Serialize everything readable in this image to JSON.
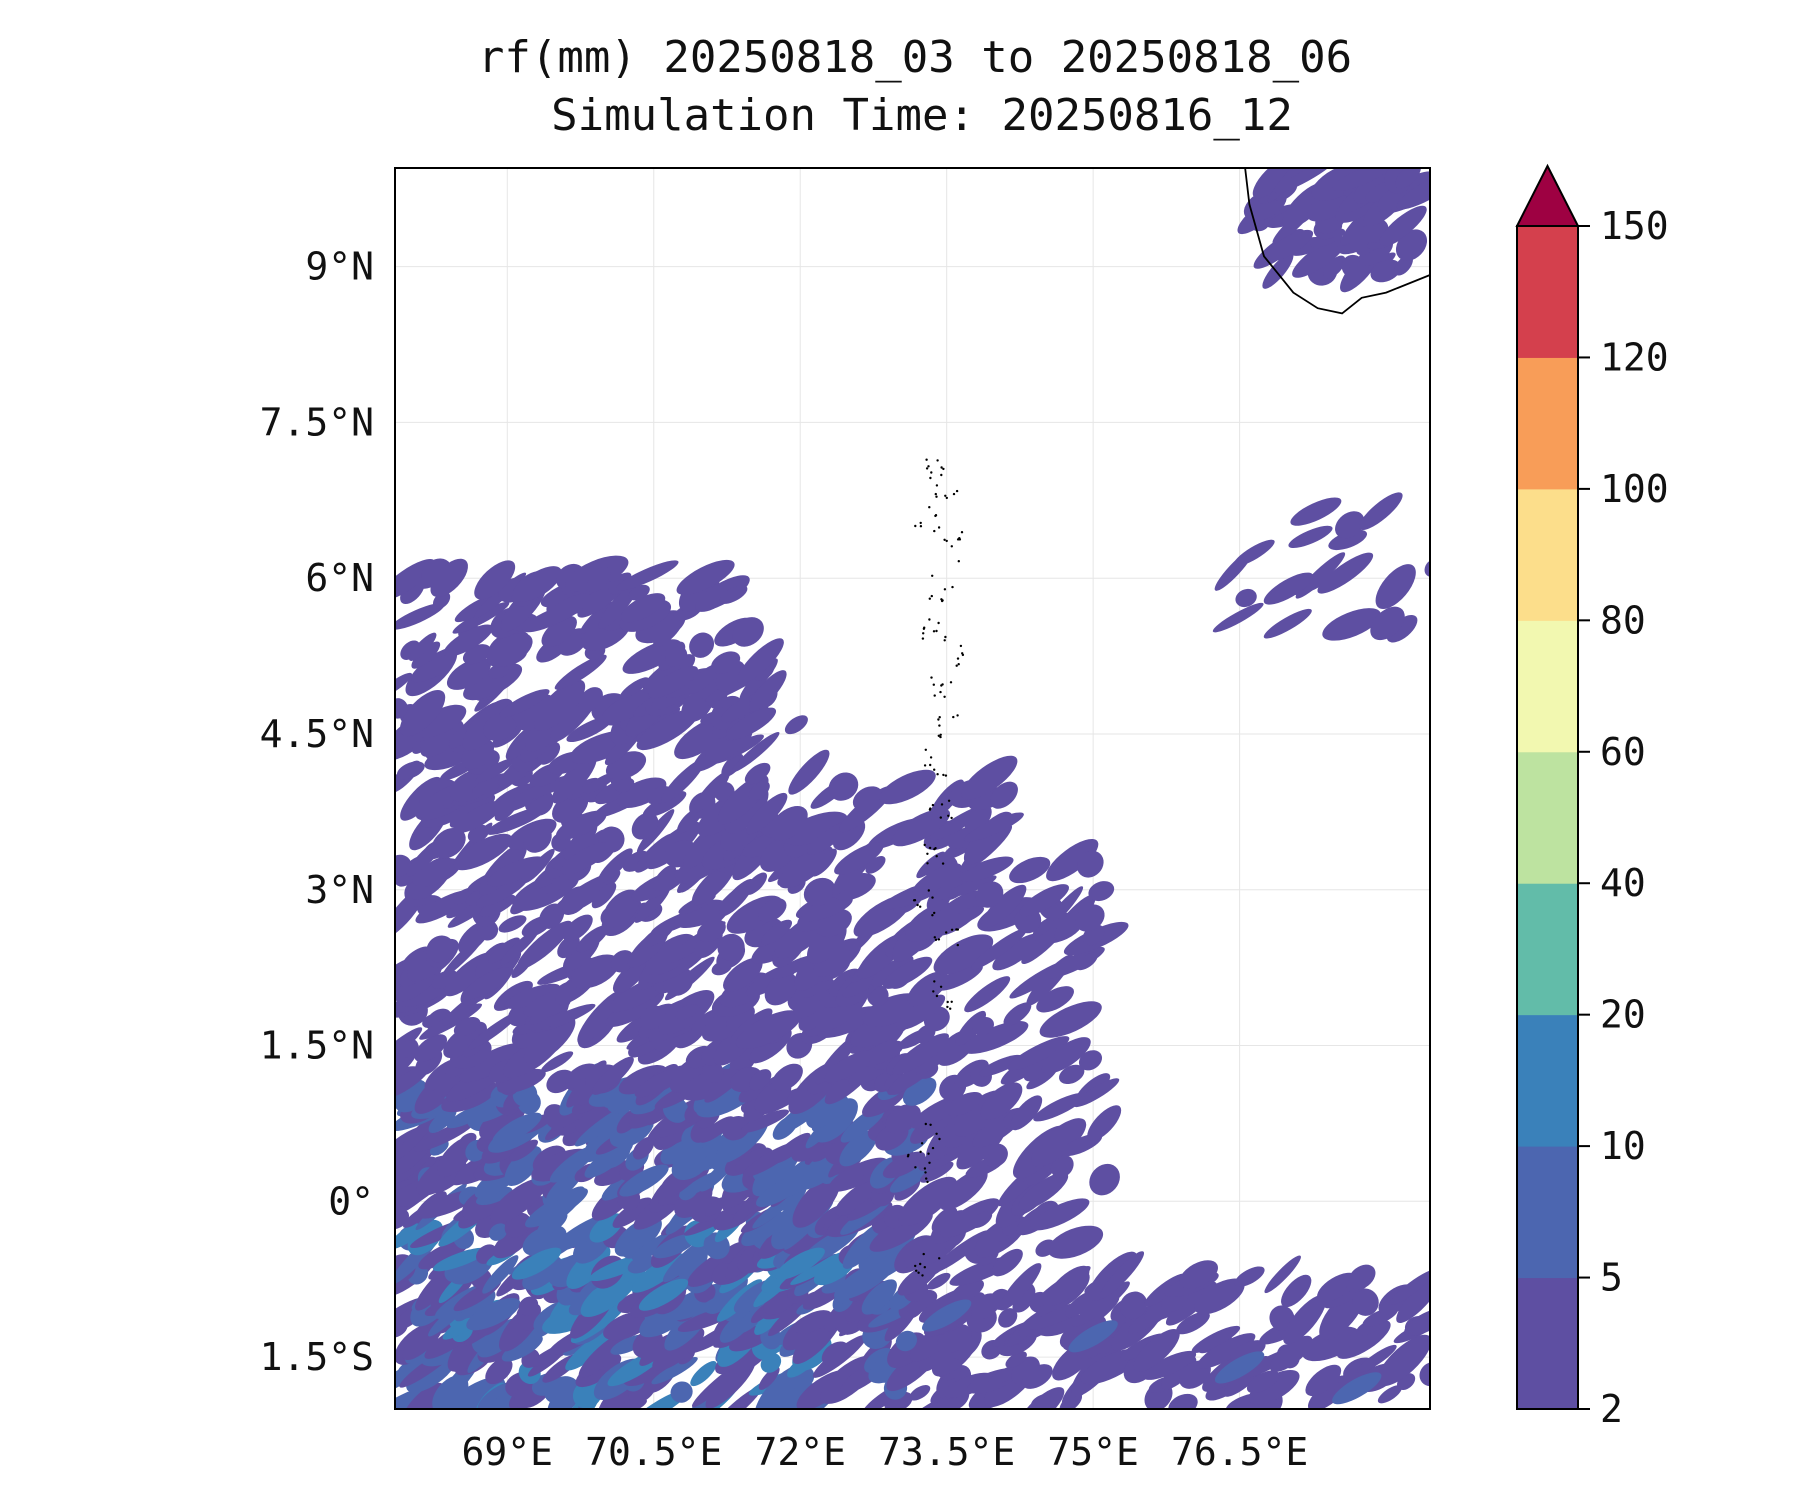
{
  "figure": {
    "title_line1": "rf(mm) 20250818_03 to 20250818_06",
    "title_line2": "Simulation Time: 20250816_12"
  },
  "map": {
    "lon_range": [
      67.85,
      78.45
    ],
    "lat_range": [
      -2.0,
      9.95
    ],
    "x_ticks": [
      {
        "value": 69.0,
        "label": "69°E"
      },
      {
        "value": 70.5,
        "label": "70.5°E"
      },
      {
        "value": 72.0,
        "label": "72°E"
      },
      {
        "value": 73.5,
        "label": "73.5°E"
      },
      {
        "value": 75.0,
        "label": "75°E"
      },
      {
        "value": 76.5,
        "label": "76.5°E"
      }
    ],
    "y_ticks": [
      {
        "value": 9.0,
        "label": "9°N"
      },
      {
        "value": 7.5,
        "label": "7.5°N"
      },
      {
        "value": 6.0,
        "label": "6°N"
      },
      {
        "value": 4.5,
        "label": "4.5°N"
      },
      {
        "value": 3.0,
        "label": "3°N"
      },
      {
        "value": 1.5,
        "label": "1.5°N"
      },
      {
        "value": 0.0,
        "label": "0°"
      },
      {
        "value": -1.5,
        "label": "1.5°S"
      }
    ],
    "gridlines": true,
    "coastline": [
      [
        76.55,
        10.0
      ],
      [
        76.6,
        9.6
      ],
      [
        76.75,
        9.1
      ],
      [
        77.05,
        8.75
      ],
      [
        77.3,
        8.6
      ],
      [
        77.55,
        8.55
      ],
      [
        77.75,
        8.7
      ],
      [
        78.0,
        8.75
      ],
      [
        78.45,
        8.92
      ]
    ],
    "rain_field": {
      "description_label": "rf(mm)",
      "dominant_range_mm": "2-10",
      "rain_cells": [
        {
          "lon": 68.6,
          "lat": 5.4,
          "level": 0
        },
        {
          "lon": 69.6,
          "lat": 5.7,
          "level": 0
        },
        {
          "lon": 70.7,
          "lat": 5.0,
          "level": 0
        },
        {
          "lon": 71.5,
          "lat": 4.6,
          "level": 0
        },
        {
          "lon": 68.7,
          "lat": 3.7,
          "level": 0
        },
        {
          "lon": 69.8,
          "lat": 3.3,
          "level": 0
        },
        {
          "lon": 72.6,
          "lat": 3.3,
          "level": 0
        },
        {
          "lon": 73.4,
          "lat": 3.1,
          "level": 0
        },
        {
          "lon": 74.5,
          "lat": 2.9,
          "level": 0
        },
        {
          "lon": 68.8,
          "lat": 2.1,
          "level": 0
        },
        {
          "lon": 73.1,
          "lat": 2.2,
          "level": 0
        },
        {
          "lon": 72.5,
          "lat": 1.3,
          "level": 0
        },
        {
          "lon": 69.1,
          "lat": 0.7,
          "level": 1
        },
        {
          "lon": 70.4,
          "lat": 0.2,
          "level": 1
        },
        {
          "lon": 71.8,
          "lat": 0.1,
          "level": 1
        },
        {
          "lon": 69.3,
          "lat": -0.6,
          "level": 2
        },
        {
          "lon": 70.6,
          "lat": -0.9,
          "level": 2
        },
        {
          "lon": 72.0,
          "lat": -0.6,
          "level": 2
        },
        {
          "lon": 73.5,
          "lat": -1.1,
          "level": 1
        },
        {
          "lon": 75.0,
          "lat": -1.3,
          "level": 1
        },
        {
          "lon": 76.5,
          "lat": -1.6,
          "level": 1
        },
        {
          "lon": 77.7,
          "lat": -1.8,
          "level": 1
        },
        {
          "lon": 77.0,
          "lat": 5.9,
          "level": 0
        },
        {
          "lon": 77.0,
          "lat": 9.2,
          "level": 0
        }
      ]
    }
  },
  "colorbar": {
    "levels": [
      "2",
      "5",
      "10",
      "20",
      "40",
      "60",
      "80",
      "100",
      "120",
      "150"
    ],
    "colors": [
      "#5e4fa2",
      "#4c66b0",
      "#3a81ba",
      "#62bca9",
      "#bde3a0",
      "#f2f8b0",
      "#fcde8b",
      "#f89d58",
      "#d4404d",
      "#9e0142"
    ],
    "extend": "max"
  }
}
